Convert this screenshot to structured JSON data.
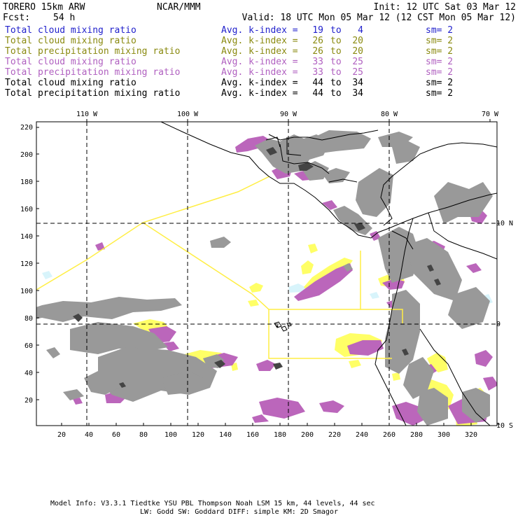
{
  "header": {
    "model": "TORERO  15km ARW",
    "center": "NCAR/MMM",
    "init": "Init: 12 UTC Sat 03 Mar 12",
    "fcst_label": "Fcst:",
    "fcst_value": "54 h",
    "valid": "Valid: 18 UTC Mon 05 Mar 12 (12 CST Mon 05 Mar 12)"
  },
  "legend": [
    {
      "field": "Total cloud mixing ratio",
      "kindex": "Avg. k-index =",
      "from": "19",
      "to_word": "to",
      "to": "4",
      "sm": "sm= 2",
      "color": "#2222cc"
    },
    {
      "field": "Total cloud mixing ratio",
      "kindex": "Avg. k-index =",
      "from": "26",
      "to_word": "to",
      "to": "20",
      "sm": "sm= 2",
      "color": "#8a8a10"
    },
    {
      "field": "Total precipitation mixing ratio",
      "kindex": "Avg. k-index =",
      "from": "26",
      "to_word": "to",
      "to": "20",
      "sm": "sm= 2",
      "color": "#8a8a10"
    },
    {
      "field": "Total cloud mixing ratio",
      "kindex": "Avg. k-index =",
      "from": "33",
      "to_word": "to",
      "to": "25",
      "sm": "sm= 2",
      "color": "#b060c0"
    },
    {
      "field": "Total precipitation mixing ratio",
      "kindex": "Avg. k-index =",
      "from": "33",
      "to_word": "to",
      "to": "25",
      "sm": "sm= 2",
      "color": "#b060c0"
    },
    {
      "field": "Total cloud mixing ratio",
      "kindex": "Avg. k-index =",
      "from": "44",
      "to_word": "to",
      "to": "34",
      "sm": "sm= 2",
      "color": "#000000"
    },
    {
      "field": "Total precipitation mixing ratio",
      "kindex": "Avg. k-index =",
      "from": "44",
      "to_word": "to",
      "to": "34",
      "sm": "sm= 2",
      "color": "#000000"
    }
  ],
  "map": {
    "top_lon_labels": [
      "110 W",
      "100 W",
      "90 W",
      "80 W",
      "70 W"
    ],
    "right_lat_labels": [
      "10 N",
      "0",
      "10 S"
    ],
    "left_grid_labels": [
      "220",
      "200",
      "180",
      "160",
      "140",
      "120",
      "100",
      "80",
      "60",
      "40",
      "20"
    ],
    "bottom_grid_labels": [
      "20",
      "40",
      "60",
      "80",
      "100",
      "120",
      "140",
      "160",
      "180",
      "200",
      "220",
      "240",
      "260",
      "280",
      "300",
      "320"
    ],
    "colors": {
      "yellow": "#ffff66",
      "magenta": "#bb66bb",
      "gray": "#999999",
      "dark": "#444444",
      "light_blue": "#d8f4fb",
      "boundary": "#ffee44"
    }
  },
  "footer": {
    "line1": "Model Info: V3.3.1   Tiedtke YSU PBL  Thompson    Noah LSM  15 km,   44 levels,   44 sec",
    "line2": "LW: Godd SW: Goddard DIFF: simple KM: 2D Smagor"
  }
}
